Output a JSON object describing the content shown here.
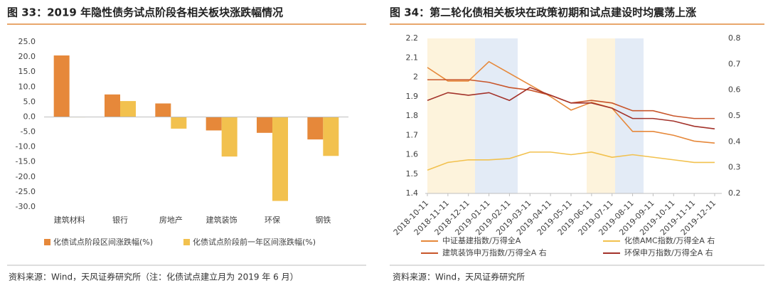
{
  "chart_data": [
    {
      "type": "bar",
      "title": "图 33：2019 年隐性债务试点阶段各相关板块涨跌幅情况",
      "categories": [
        "建筑材料",
        "银行",
        "房地产",
        "建筑装饰",
        "环保",
        "钢铁"
      ],
      "series": [
        {
          "name": "化债试点阶段区间涨跌幅(%)",
          "color": "#e6883a",
          "values": [
            20.5,
            7.5,
            4.5,
            -4.5,
            -5.3,
            -7.5
          ]
        },
        {
          "name": "化债试点阶段前一年区间涨跌幅(%)",
          "color": "#f2c14e",
          "values": [
            -0.1,
            5.3,
            -3.9,
            -13.2,
            -28.0,
            -13.0
          ]
        }
      ],
      "ylim": [
        -30,
        25
      ],
      "yticks": [
        {
          "value": 25,
          "label": "25.0"
        },
        {
          "value": 20,
          "label": "20.0"
        },
        {
          "value": 15,
          "label": "15.0"
        },
        {
          "value": 10,
          "label": "10.0"
        },
        {
          "value": 5,
          "label": "5.0"
        },
        {
          "value": 0,
          "label": "0.0"
        },
        {
          "value": -5,
          "label": "-5.0"
        },
        {
          "value": -10,
          "label": "-10.0"
        },
        {
          "value": -15,
          "label": "-15.0"
        },
        {
          "value": -20,
          "label": "-20.0"
        },
        {
          "value": -25,
          "label": "-25.0"
        },
        {
          "value": -30,
          "label": "-30.0"
        }
      ],
      "source": "资料来源：Wind，天风证券研究所（注：化债试点建立月为 2019 年 6 月）"
    },
    {
      "type": "line",
      "title": "图 34：第二轮化债相关板块在政策初期和试点建设时均震荡上涨",
      "x": [
        "2018-10-11",
        "2018-11-11",
        "2018-12-11",
        "2019-01-11",
        "2019-02-11",
        "2019-03-11",
        "2019-04-11",
        "2019-05-11",
        "2019-06-11",
        "2019-07-11",
        "2019-08-11",
        "2019-09-11",
        "2019-10-11",
        "2019-11-11",
        "2019-12-11"
      ],
      "series": [
        {
          "name": "中证基建指数/万得全A",
          "color": "#e6883a",
          "axis": "y",
          "values": [
            2.05,
            1.98,
            1.98,
            2.08,
            2.02,
            1.96,
            1.9,
            1.83,
            1.87,
            1.84,
            1.72,
            1.72,
            1.7,
            1.67,
            1.66
          ]
        },
        {
          "name": "化债AMC指数/万得全A 右",
          "color": "#f2c14e",
          "axis": "y2",
          "values": [
            0.29,
            0.32,
            0.33,
            0.33,
            0.335,
            0.36,
            0.36,
            0.35,
            0.36,
            0.34,
            0.35,
            0.34,
            0.33,
            0.32,
            0.32
          ]
        },
        {
          "name": "建筑装饰申万指数/万得全A 右",
          "color": "#c8552a",
          "axis": "y2",
          "values": [
            0.64,
            0.64,
            0.64,
            0.63,
            0.61,
            0.6,
            0.58,
            0.55,
            0.56,
            0.55,
            0.52,
            0.52,
            0.5,
            0.49,
            0.49
          ]
        },
        {
          "name": "环保申万指数/万得全A 右",
          "color": "#a3322a",
          "axis": "y2",
          "values": [
            0.56,
            0.59,
            0.58,
            0.59,
            0.56,
            0.61,
            0.58,
            0.55,
            0.55,
            0.53,
            0.49,
            0.49,
            0.48,
            0.46,
            0.45
          ]
        }
      ],
      "ylim": [
        1.4,
        2.2
      ],
      "yticks": [
        1.4,
        1.5,
        1.6,
        1.7,
        1.8,
        1.9,
        2.0,
        2.1,
        2.2
      ],
      "y2lim": [
        0.2,
        0.8
      ],
      "y2ticks": [
        0.2,
        0.3,
        0.4,
        0.5,
        0.6,
        0.7,
        0.8
      ],
      "source": "资料来源：Wind，天风证券研究所"
    }
  ]
}
